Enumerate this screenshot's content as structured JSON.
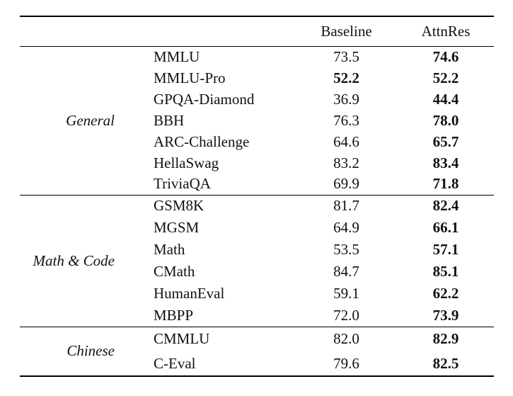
{
  "table": {
    "header": {
      "baseline": "Baseline",
      "attnres": "AttnRes"
    },
    "sections": [
      {
        "category": "General",
        "rows": [
          {
            "benchmark": "MMLU",
            "baseline": "73.5",
            "baseline_bold": false,
            "attnres": "74.6",
            "attnres_bold": true
          },
          {
            "benchmark": "MMLU-Pro",
            "baseline": "52.2",
            "baseline_bold": true,
            "attnres": "52.2",
            "attnres_bold": true
          },
          {
            "benchmark": "GPQA-Diamond",
            "baseline": "36.9",
            "baseline_bold": false,
            "attnres": "44.4",
            "attnres_bold": true
          },
          {
            "benchmark": "BBH",
            "baseline": "76.3",
            "baseline_bold": false,
            "attnres": "78.0",
            "attnres_bold": true
          },
          {
            "benchmark": "ARC-Challenge",
            "baseline": "64.6",
            "baseline_bold": false,
            "attnres": "65.7",
            "attnres_bold": true
          },
          {
            "benchmark": "HellaSwag",
            "baseline": "83.2",
            "baseline_bold": false,
            "attnres": "83.4",
            "attnres_bold": true
          },
          {
            "benchmark": "TriviaQA",
            "baseline": "69.9",
            "baseline_bold": false,
            "attnres": "71.8",
            "attnres_bold": true
          }
        ]
      },
      {
        "category": "Math & Code",
        "rows": [
          {
            "benchmark": "GSM8K",
            "baseline": "81.7",
            "baseline_bold": false,
            "attnres": "82.4",
            "attnres_bold": true
          },
          {
            "benchmark": "MGSM",
            "baseline": "64.9",
            "baseline_bold": false,
            "attnres": "66.1",
            "attnres_bold": true
          },
          {
            "benchmark": "Math",
            "baseline": "53.5",
            "baseline_bold": false,
            "attnres": "57.1",
            "attnres_bold": true
          },
          {
            "benchmark": "CMath",
            "baseline": "84.7",
            "baseline_bold": false,
            "attnres": "85.1",
            "attnres_bold": true
          },
          {
            "benchmark": "HumanEval",
            "baseline": "59.1",
            "baseline_bold": false,
            "attnres": "62.2",
            "attnres_bold": true
          },
          {
            "benchmark": "MBPP",
            "baseline": "72.0",
            "baseline_bold": false,
            "attnres": "73.9",
            "attnres_bold": true
          }
        ]
      },
      {
        "category": "Chinese",
        "rows": [
          {
            "benchmark": "CMMLU",
            "baseline": "82.0",
            "baseline_bold": false,
            "attnres": "82.9",
            "attnres_bold": true
          },
          {
            "benchmark": "C-Eval",
            "baseline": "79.6",
            "baseline_bold": false,
            "attnres": "82.5",
            "attnres_bold": true
          }
        ]
      }
    ]
  }
}
